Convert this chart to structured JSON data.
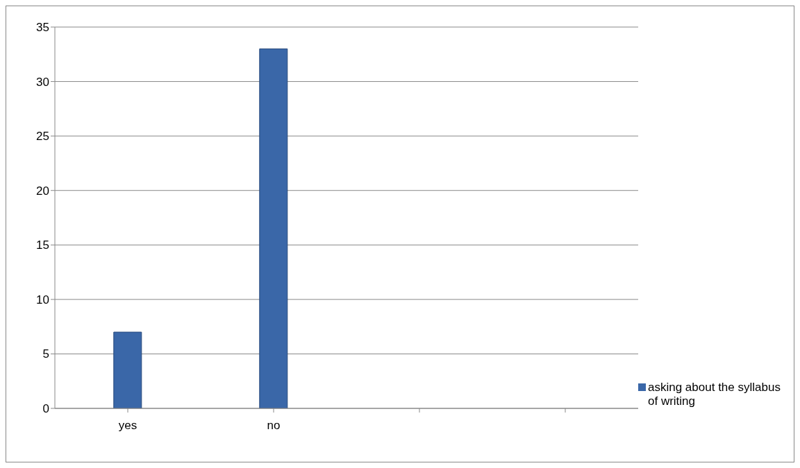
{
  "chart_data": {
    "type": "bar",
    "categories": [
      "yes",
      "no",
      null,
      null
    ],
    "series": [
      {
        "name": "asking about the syllabus of writing",
        "color": "#3a67a8",
        "values": [
          7,
          33,
          null,
          null
        ]
      }
    ],
    "ylim": [
      0,
      35
    ],
    "yticks": [
      0,
      5,
      10,
      15,
      20,
      25,
      30,
      35
    ],
    "grid": "y",
    "legend": "right"
  }
}
